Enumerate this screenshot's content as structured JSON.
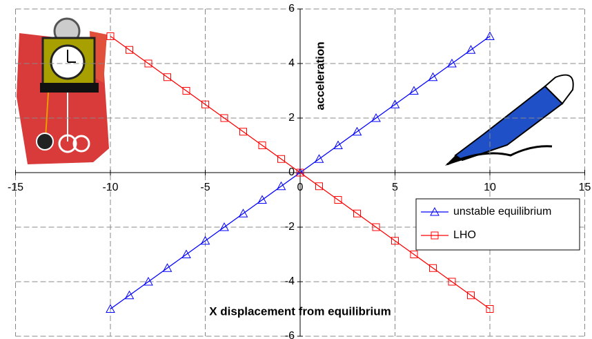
{
  "chart_data": {
    "type": "line",
    "x_label": "X displacement from equilibrium",
    "y_label": "acceleration",
    "x": [
      -10,
      -9,
      -8,
      -7,
      -6,
      -5,
      -4,
      -3,
      -2,
      -1,
      0,
      1,
      2,
      3,
      4,
      5,
      6,
      7,
      8,
      9,
      10
    ],
    "series": [
      {
        "name": "unstable equilibrium",
        "color": "#0000ff",
        "marker": "triangle",
        "values": [
          -5,
          -4.5,
          -4,
          -3.5,
          -3,
          -2.5,
          -2,
          -1.5,
          -1,
          -0.5,
          0,
          0.5,
          1,
          1.5,
          2,
          2.5,
          3,
          3.5,
          4,
          4.5,
          5
        ]
      },
      {
        "name": "LHO",
        "color": "#ff0000",
        "marker": "square",
        "values": [
          5,
          4.5,
          4,
          3.5,
          3,
          2.5,
          2,
          1.5,
          1,
          0.5,
          0,
          -0.5,
          -1,
          -1.5,
          -2,
          -2.5,
          -3,
          -3.5,
          -4,
          -4.5,
          -5
        ]
      }
    ],
    "xlim": [
      -15,
      15
    ],
    "xticks": [
      -15,
      -10,
      -5,
      0,
      5,
      10,
      15
    ],
    "ylim": [
      -6,
      6
    ],
    "yticks": [
      -6,
      -4,
      -2,
      0,
      2,
      4,
      6
    ],
    "grid": true,
    "legend": "right"
  }
}
